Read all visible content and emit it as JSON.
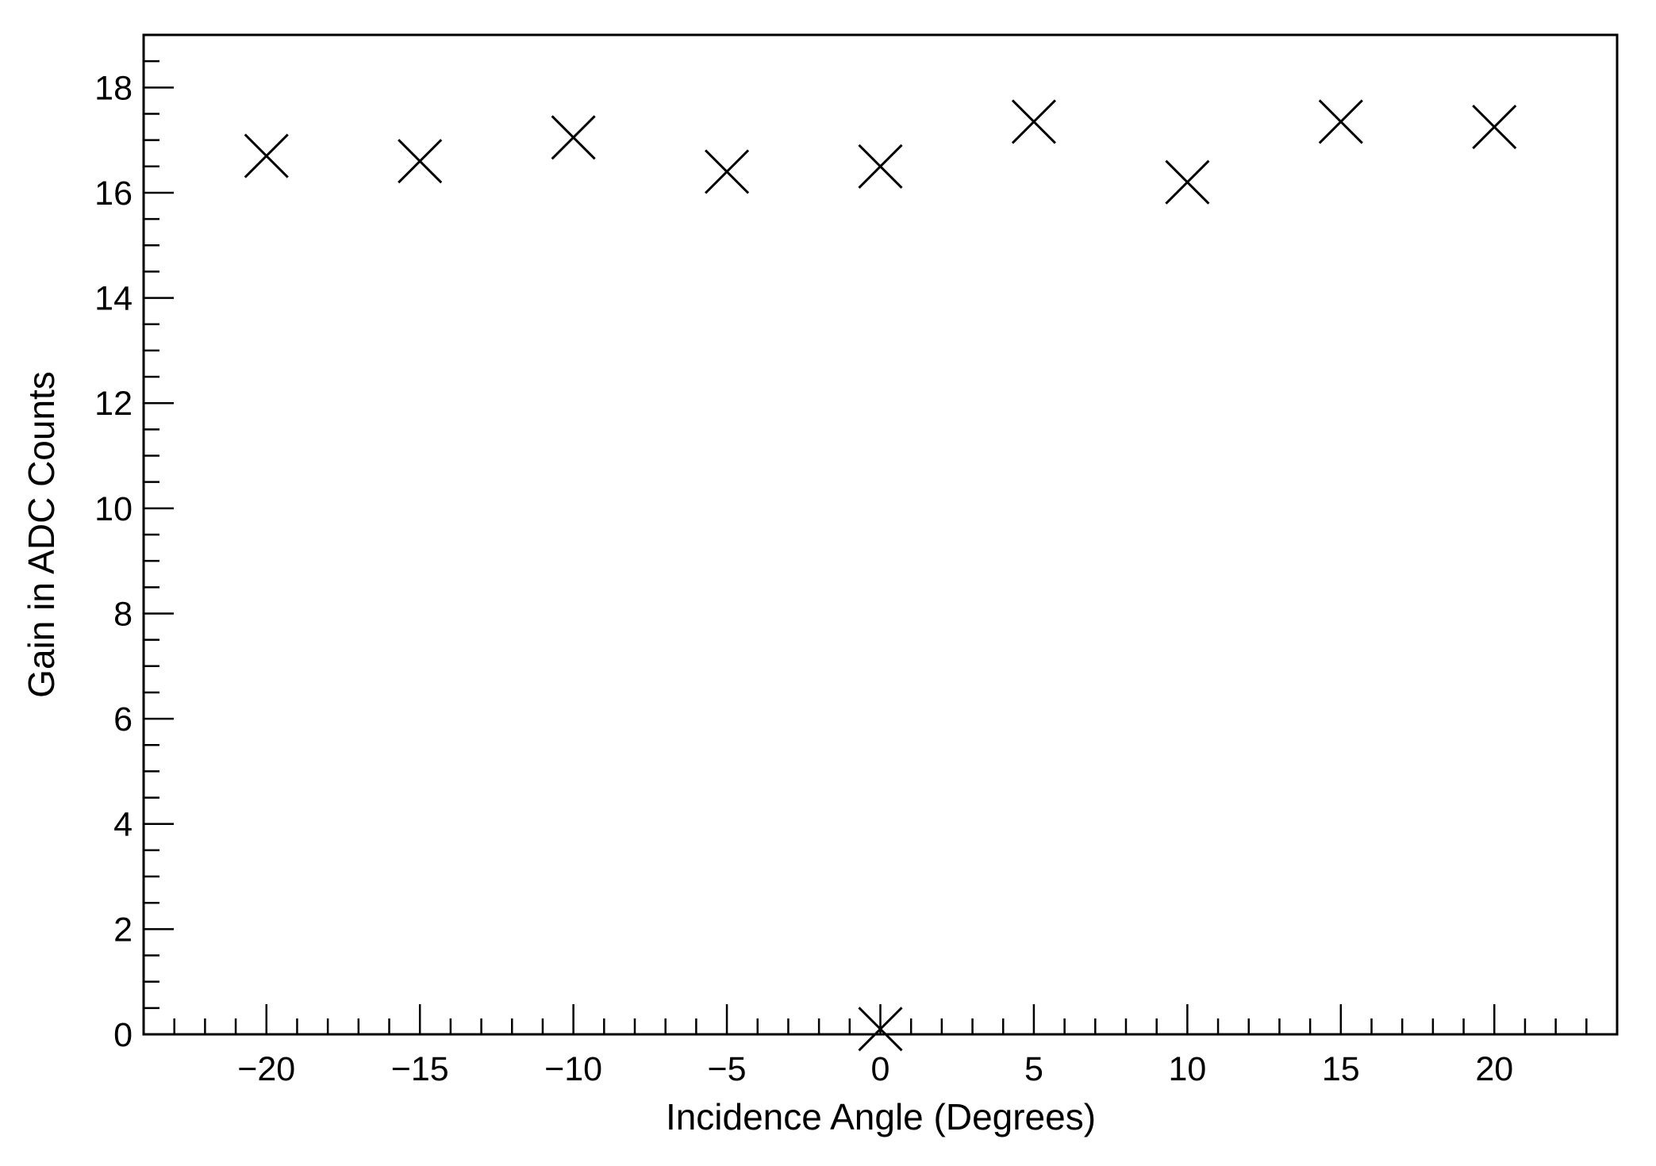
{
  "chart_data": {
    "type": "scatter",
    "title": "",
    "xlabel": "Incidence Angle (Degrees)",
    "ylabel": "Gain in ADC Counts",
    "xlim": [
      -24,
      24
    ],
    "ylim": [
      0,
      19
    ],
    "xticks": [
      -20,
      -15,
      -10,
      -5,
      0,
      5,
      10,
      15,
      20
    ],
    "xtick_labels": [
      "−20",
      "−15",
      "−10",
      "−5",
      "0",
      "5",
      "10",
      "15",
      "20"
    ],
    "yticks": [
      0,
      2,
      4,
      6,
      8,
      10,
      12,
      14,
      16,
      18
    ],
    "ytick_labels": [
      "0",
      "2",
      "4",
      "6",
      "8",
      "10",
      "12",
      "14",
      "16",
      "18"
    ],
    "x_minor_step": 1,
    "y_minor_step": 0.5,
    "marker": "x",
    "grid": false,
    "series": [
      {
        "x": [
          -20,
          -15,
          -10,
          -5,
          0,
          0,
          5,
          10,
          15,
          20
        ],
        "y": [
          16.7,
          16.6,
          17.05,
          16.4,
          16.5,
          0.1,
          17.35,
          16.2,
          17.35,
          17.25
        ]
      }
    ]
  }
}
